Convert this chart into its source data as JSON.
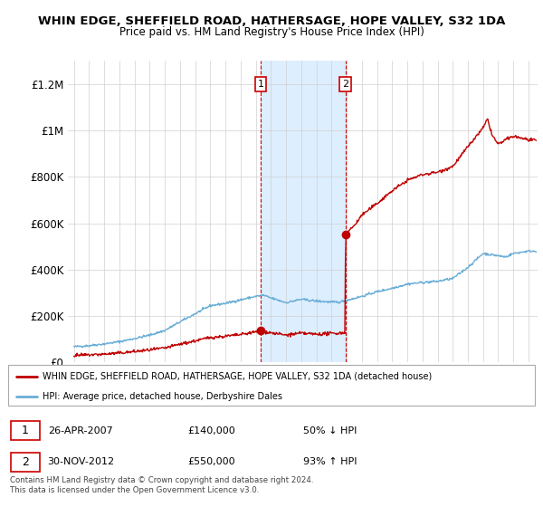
{
  "title": "WHIN EDGE, SHEFFIELD ROAD, HATHERSAGE, HOPE VALLEY, S32 1DA",
  "subtitle": "Price paid vs. HM Land Registry's House Price Index (HPI)",
  "ylabel_ticks": [
    "£0",
    "£200K",
    "£400K",
    "£600K",
    "£800K",
    "£1M",
    "£1.2M"
  ],
  "ylim": [
    0,
    1300000
  ],
  "yticks": [
    0,
    200000,
    400000,
    600000,
    800000,
    1000000,
    1200000
  ],
  "xlim_start": 1994.6,
  "xlim_end": 2025.6,
  "legend_line1": "WHIN EDGE, SHEFFIELD ROAD, HATHERSAGE, HOPE VALLEY, S32 1DA (detached house)",
  "legend_line2": "HPI: Average price, detached house, Derbyshire Dales",
  "annotation1_date": 2007.32,
  "annotation1_price": 140000,
  "annotation1_label": "1",
  "annotation2_date": 2012.92,
  "annotation2_price": 550000,
  "annotation2_label": "2",
  "footnote": "Contains HM Land Registry data © Crown copyright and database right 2024.\nThis data is licensed under the Open Government Licence v3.0.",
  "hpi_color": "#6aaed6",
  "price_color": "#c00000",
  "shaded_region_start": 2007.32,
  "shaded_region_end": 2012.92,
  "shaded_color": "#ddeeff"
}
